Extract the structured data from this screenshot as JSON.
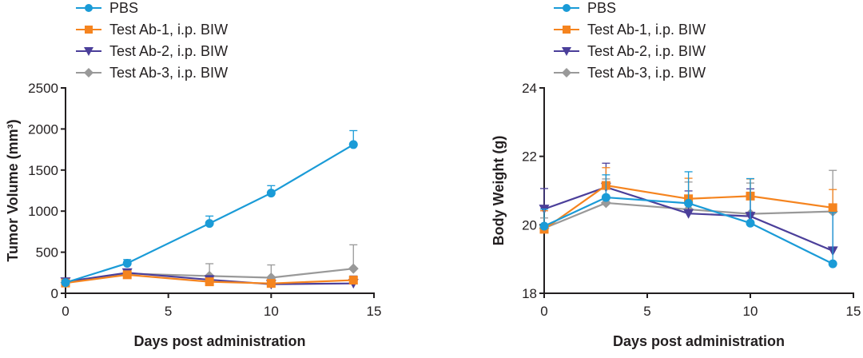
{
  "chart_data": [
    {
      "type": "line",
      "xlabel": "Days post administration",
      "ylabel": "Tumor Volume (mm³)",
      "xlim": [
        0,
        15
      ],
      "ylim": [
        0,
        2500
      ],
      "xticks": [
        "0",
        "5",
        "10",
        "15"
      ],
      "yticks": [
        "0",
        "500",
        "1000",
        "1500",
        "2000",
        "2500"
      ],
      "x": [
        0,
        3,
        7,
        10,
        14
      ],
      "legend_position": "top-left",
      "series": [
        {
          "name": "PBS",
          "color": "#1a9bd7",
          "marker": "circle",
          "values": [
            130,
            365,
            850,
            1220,
            1810
          ],
          "errors": [
            30,
            45,
            90,
            90,
            170
          ]
        },
        {
          "name": "Test Ab-1, i.p. BIW",
          "color": "#f5841f",
          "marker": "square",
          "values": [
            125,
            225,
            140,
            120,
            160
          ],
          "errors": [
            20,
            30,
            30,
            30,
            40
          ]
        },
        {
          "name": "Test Ab-2, i.p. BIW",
          "color": "#4b3f9a",
          "marker": "triangle-down",
          "values": [
            140,
            250,
            165,
            110,
            120
          ],
          "errors": [
            20,
            40,
            50,
            30,
            90
          ]
        },
        {
          "name": "Test Ab-3, i.p. BIW",
          "color": "#999999",
          "marker": "diamond",
          "values": [
            130,
            240,
            210,
            190,
            300
          ],
          "errors": [
            20,
            40,
            150,
            155,
            290
          ]
        }
      ]
    },
    {
      "type": "line",
      "xlabel": "Days post administration",
      "ylabel": "Body Weight (g)",
      "xlim": [
        0,
        15
      ],
      "ylim": [
        18,
        24
      ],
      "xticks": [
        "0",
        "5",
        "10",
        "15"
      ],
      "yticks": [
        "18",
        "20",
        "22",
        "24"
      ],
      "x": [
        0,
        3,
        7,
        10,
        14
      ],
      "legend_position": "top-left",
      "series": [
        {
          "name": "PBS",
          "color": "#1a9bd7",
          "marker": "circle",
          "values": [
            19.96,
            20.8,
            20.63,
            20.05,
            18.86
          ],
          "errors": [
            0.5,
            0.66,
            0.92,
            1.3,
            1.5
          ]
        },
        {
          "name": "Test Ab-1, i.p. BIW",
          "color": "#f5841f",
          "marker": "square",
          "values": [
            19.87,
            21.15,
            20.76,
            20.84,
            20.5
          ],
          "errors": [
            0.54,
            0.52,
            0.6,
            0.5,
            0.53
          ]
        },
        {
          "name": "Test Ab-2, i.p. BIW",
          "color": "#4b3f9a",
          "marker": "triangle-down",
          "values": [
            20.46,
            21.1,
            20.33,
            20.25,
            19.24
          ],
          "errors": [
            0.6,
            0.7,
            0.66,
            0.8,
            1.34
          ]
        },
        {
          "name": "Test Ab-3, i.p. BIW",
          "color": "#999999",
          "marker": "diamond",
          "values": [
            19.9,
            20.64,
            20.45,
            20.32,
            20.39
          ],
          "errors": [
            0.3,
            0.7,
            0.8,
            0.9,
            1.2
          ]
        }
      ]
    }
  ]
}
